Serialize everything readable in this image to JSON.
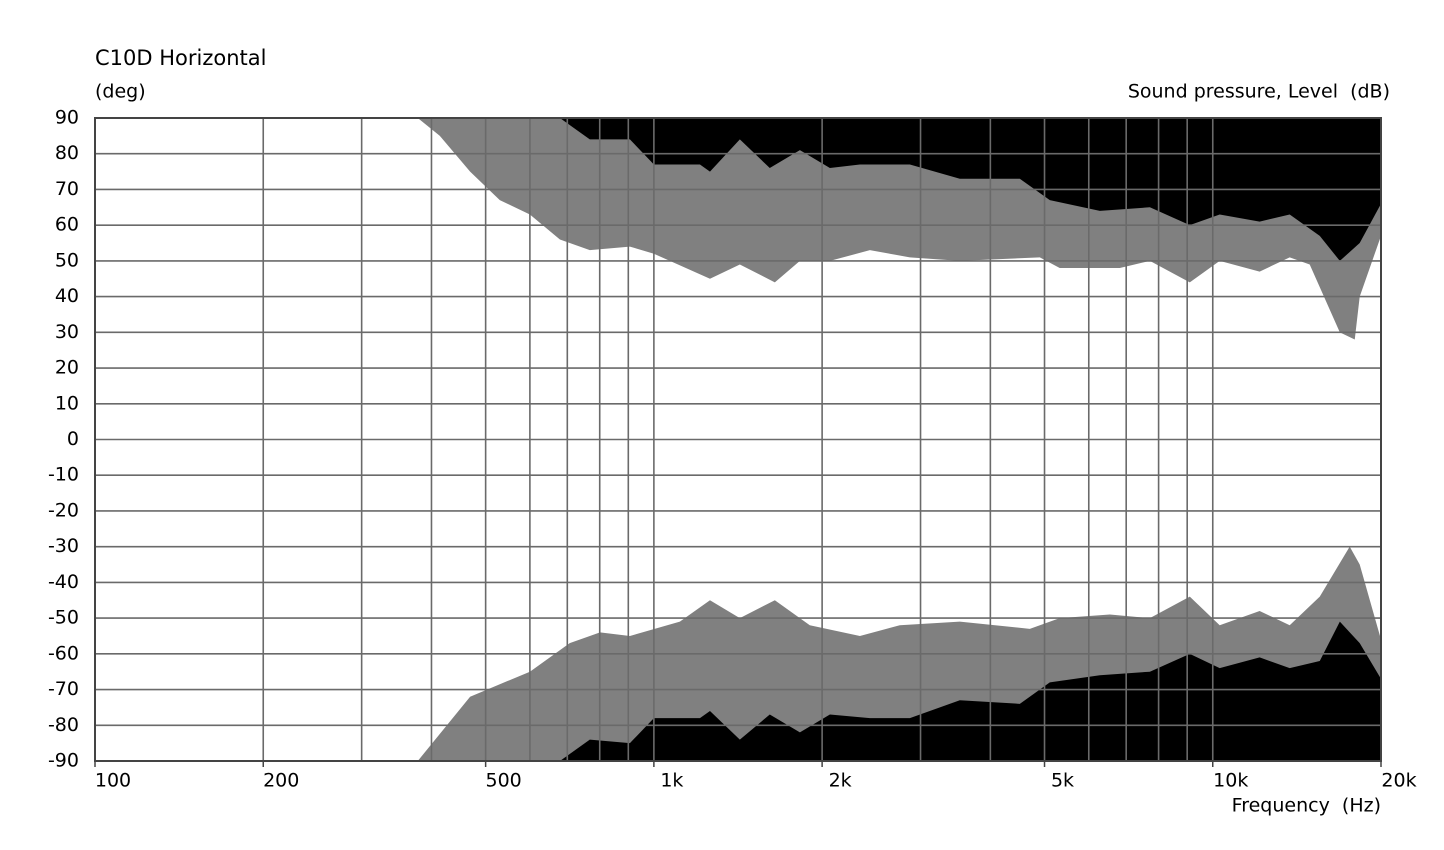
{
  "chart_data": {
    "type": "directivity",
    "title": "C10D Horizontal",
    "y_label": "(deg)",
    "color_label": "Sound pressure, Level  (dB)",
    "x_label": "Frequency  (Hz)",
    "log_x": true,
    "background": "#000000",
    "xlim": [
      100,
      20000
    ],
    "ylim": [
      -90,
      90
    ],
    "xticks": [
      100,
      200,
      500,
      {
        "value": 1000,
        "label": "1k"
      },
      {
        "value": 2000,
        "label": "2k"
      },
      {
        "value": 5000,
        "label": "5k"
      },
      {
        "value": 10000,
        "label": "10k"
      },
      {
        "value": 20000,
        "label": "20k"
      }
    ],
    "xgrid": [
      100,
      200,
      300,
      400,
      500,
      600,
      700,
      800,
      900,
      1000,
      2000,
      3000,
      4000,
      5000,
      6000,
      7000,
      8000,
      9000,
      10000,
      20000
    ],
    "yticks": [
      90,
      80,
      70,
      60,
      50,
      40,
      30,
      20,
      10,
      0,
      -10,
      -20,
      -30,
      -40,
      -50,
      -60,
      -70,
      -80,
      -90
    ],
    "grid": true,
    "series": [
      {
        "color": "#808080",
        "x": [
          679,
          768,
          801,
          906,
          1000,
          1209,
          1260,
          1425,
          1612,
          1825,
          2065,
          2337,
          2871,
          3527,
          4159,
          4516,
          5110,
          6280,
          7717,
          9097,
          10290,
          12130,
          13730,
          15540,
          16880,
          18320,
          20000
        ],
        "values": [
          90,
          84,
          84,
          84,
          77,
          77,
          75,
          84,
          76,
          81,
          76,
          77,
          77,
          73,
          73,
          73,
          67,
          64,
          65,
          60,
          63,
          61,
          63,
          57,
          50,
          55,
          66
        ]
      },
      {
        "color": "#ffffff",
        "x": [
          378,
          414,
          469,
          530,
          600,
          679,
          768,
          906,
          1000,
          1260,
          1425,
          1646,
          1825,
          2065,
          2435,
          2871,
          3527,
          4904,
          5323,
          6818,
          7717,
          9097,
          10290,
          12130,
          13730,
          14910,
          16880,
          17950,
          18320,
          20000
        ],
        "values": [
          90,
          85,
          75,
          67,
          63,
          56,
          53,
          54,
          52,
          45,
          49,
          44,
          50,
          50,
          53,
          51,
          50,
          51,
          48,
          48,
          50,
          44,
          50,
          47,
          51,
          49,
          30,
          28,
          40,
          57
        ]
      },
      {
        "color": "#ffffff",
        "x": [
          378,
          469,
          600,
          707,
          801,
          906,
          1113,
          1260,
          1425,
          1646,
          1901,
          2337,
          2754,
          3527,
          4706,
          5323,
          6544,
          7717,
          9097,
          10290,
          12130,
          13730,
          15540,
          17580,
          18320,
          20000
        ],
        "values": [
          -90,
          -72,
          -65,
          -57,
          -54,
          -55,
          -51,
          -45,
          -50,
          -45,
          -52,
          -55,
          -52,
          -51,
          -53,
          -50,
          -49,
          -50,
          -44,
          -52,
          -48,
          -52,
          -44,
          -30,
          -35,
          -56
        ]
      },
      {
        "color": "#808080",
        "x": [
          679,
          768,
          906,
          1000,
          1209,
          1260,
          1425,
          1612,
          1825,
          2065,
          2435,
          2871,
          3527,
          4516,
          5110,
          6280,
          7717,
          9097,
          10290,
          12130,
          13730,
          15540,
          16880,
          18320,
          20000
        ],
        "values": [
          -90,
          -84,
          -85,
          -78,
          -78,
          -76,
          -84,
          -77,
          -82,
          -77,
          -78,
          -78,
          -73,
          -74,
          -68,
          -66,
          -65,
          -60,
          -64,
          -61,
          -64,
          -62,
          -51,
          -57,
          -67
        ]
      }
    ]
  }
}
